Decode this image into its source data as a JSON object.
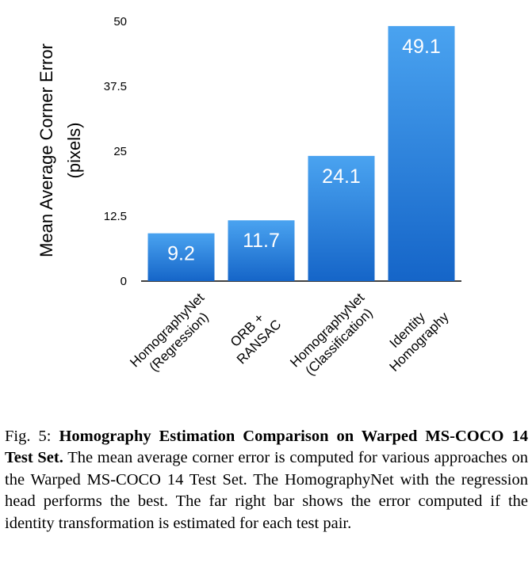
{
  "chart_data": {
    "type": "bar",
    "ylabel_lines": [
      "Mean Average Corner Error",
      "(pixels)"
    ],
    "ylim": [
      0,
      50
    ],
    "yticks": [
      "0",
      "12.5",
      "25",
      "37.5",
      "50"
    ],
    "categories": [
      [
        "HomographyNet",
        "(Regression)"
      ],
      [
        "ORB +",
        "RANSAC"
      ],
      [
        "HomographyNet",
        "(Classification)"
      ],
      [
        "Identity",
        "Homography"
      ]
    ],
    "values": [
      9.2,
      11.7,
      24.1,
      49.1
    ],
    "value_labels": [
      "9.2",
      "11.7",
      "24.1",
      "49.1"
    ],
    "grid": false,
    "bar_color_top": "#4aa3f0",
    "bar_color_bottom": "#1565c8"
  },
  "caption": {
    "prefix": "Fig. 5: ",
    "bold": "Homography Estimation Comparison on Warped MS-COCO 14 Test Set.",
    "text": " The mean average corner error is computed for various approaches on the Warped MS-COCO 14 Test Set. The HomographyNet with the regression head performs the best. The far right bar shows the error computed if the identity transformation is estimated for each test pair."
  }
}
